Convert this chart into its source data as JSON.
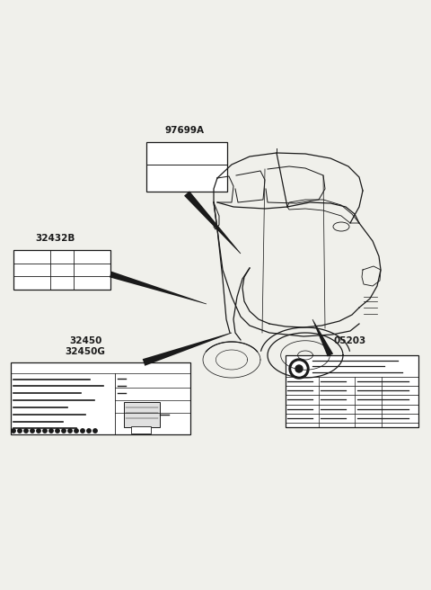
{
  "bg_color": "#f0f0eb",
  "line_color": "#1a1a1a",
  "label_97699A": "97699A",
  "label_32432B": "32432B",
  "label_32450": "32450",
  "label_32450G": "32450G",
  "label_05203": "05203",
  "label_fontsize": 7.5,
  "fig_width": 4.8,
  "fig_height": 6.56,
  "dpi": 100
}
